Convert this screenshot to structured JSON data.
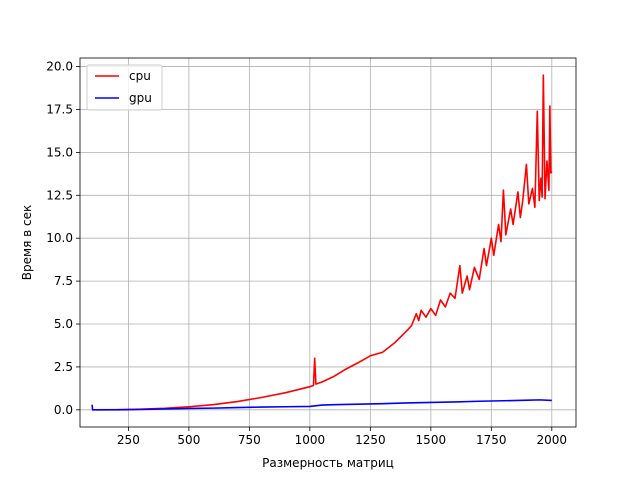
{
  "chart_data": {
    "type": "line",
    "xlabel": "Размерность матриц",
    "ylabel": "Время в сек",
    "xlim": [
      50,
      2100
    ],
    "ylim": [
      -1.0,
      20.5
    ],
    "xticks": [
      250,
      500,
      750,
      1000,
      1250,
      1500,
      1750,
      2000
    ],
    "yticks": [
      0.0,
      2.5,
      5.0,
      7.5,
      10.0,
      12.5,
      15.0,
      17.5,
      20.0
    ],
    "grid": true,
    "legend_position": "top-left",
    "series": [
      {
        "name": "cpu",
        "color": "#ff0000",
        "points": [
          [
            100,
            0.0
          ],
          [
            200,
            0.01
          ],
          [
            300,
            0.04
          ],
          [
            400,
            0.09
          ],
          [
            500,
            0.18
          ],
          [
            600,
            0.3
          ],
          [
            700,
            0.48
          ],
          [
            800,
            0.72
          ],
          [
            900,
            1.0
          ],
          [
            1000,
            1.35
          ],
          [
            1015,
            1.42
          ],
          [
            1020,
            3.0
          ],
          [
            1025,
            1.5
          ],
          [
            1050,
            1.62
          ],
          [
            1100,
            1.95
          ],
          [
            1150,
            2.38
          ],
          [
            1200,
            2.75
          ],
          [
            1250,
            3.15
          ],
          [
            1300,
            3.35
          ],
          [
            1350,
            3.9
          ],
          [
            1400,
            4.6
          ],
          [
            1420,
            4.9
          ],
          [
            1440,
            5.6
          ],
          [
            1450,
            5.2
          ],
          [
            1460,
            5.8
          ],
          [
            1480,
            5.4
          ],
          [
            1500,
            5.9
          ],
          [
            1520,
            5.5
          ],
          [
            1540,
            6.4
          ],
          [
            1560,
            6.0
          ],
          [
            1580,
            6.8
          ],
          [
            1600,
            6.5
          ],
          [
            1620,
            8.4
          ],
          [
            1630,
            6.8
          ],
          [
            1650,
            7.8
          ],
          [
            1660,
            7.0
          ],
          [
            1680,
            8.3
          ],
          [
            1700,
            7.6
          ],
          [
            1720,
            9.4
          ],
          [
            1730,
            8.4
          ],
          [
            1750,
            10.0
          ],
          [
            1760,
            9.0
          ],
          [
            1780,
            10.8
          ],
          [
            1790,
            9.8
          ],
          [
            1800,
            12.8
          ],
          [
            1810,
            10.2
          ],
          [
            1830,
            11.7
          ],
          [
            1840,
            10.8
          ],
          [
            1860,
            12.7
          ],
          [
            1870,
            11.2
          ],
          [
            1880,
            12.2
          ],
          [
            1895,
            14.3
          ],
          [
            1905,
            12.0
          ],
          [
            1920,
            12.9
          ],
          [
            1930,
            11.8
          ],
          [
            1940,
            17.4
          ],
          [
            1948,
            12.2
          ],
          [
            1955,
            13.5
          ],
          [
            1960,
            12.4
          ],
          [
            1965,
            19.5
          ],
          [
            1972,
            12.3
          ],
          [
            1980,
            14.5
          ],
          [
            1988,
            12.8
          ],
          [
            1992,
            17.7
          ],
          [
            1996,
            13.8
          ],
          [
            2000,
            13.9
          ]
        ]
      },
      {
        "name": "gpu",
        "color": "#0000ff",
        "points": [
          [
            100,
            0.3
          ],
          [
            102,
            0.0
          ],
          [
            200,
            0.0
          ],
          [
            300,
            0.02
          ],
          [
            400,
            0.05
          ],
          [
            500,
            0.08
          ],
          [
            600,
            0.1
          ],
          [
            700,
            0.13
          ],
          [
            800,
            0.16
          ],
          [
            900,
            0.18
          ],
          [
            1000,
            0.2
          ],
          [
            1050,
            0.28
          ],
          [
            1100,
            0.3
          ],
          [
            1200,
            0.33
          ],
          [
            1300,
            0.36
          ],
          [
            1400,
            0.4
          ],
          [
            1500,
            0.43
          ],
          [
            1600,
            0.46
          ],
          [
            1700,
            0.5
          ],
          [
            1800,
            0.53
          ],
          [
            1900,
            0.56
          ],
          [
            1950,
            0.58
          ],
          [
            2000,
            0.55
          ]
        ]
      }
    ]
  }
}
